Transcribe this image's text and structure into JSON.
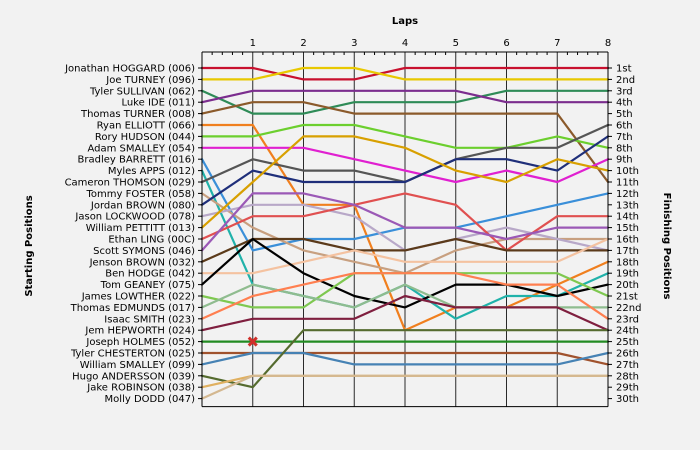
{
  "chart_data": {
    "type": "line",
    "title": "",
    "xlabel": "Laps",
    "ylabel_left": "Starting Positions",
    "ylabel_right": "Finishing Positions",
    "x": [
      0,
      1,
      2,
      3,
      4,
      5,
      6,
      7,
      8
    ],
    "x_tick_labels": [
      "1",
      "2",
      "3",
      "4",
      "5",
      "6",
      "7",
      "8"
    ],
    "ylim": [
      1,
      30
    ],
    "y_inverted": true,
    "grid": "vertical",
    "starting_labels": [
      "Jonathan HOGGARD (006)",
      "Joe TURNEY (096)",
      "Tyler SULLIVAN (062)",
      "Luke IDE (011)",
      "Thomas TURNER (008)",
      "Ryan ELLIOTT (066)",
      "Rory HUDSON (044)",
      "Adam SMALLEY (054)",
      "Bradley BARRETT (016)",
      "Myles APPS (012)",
      "Cameron THOMSON (029)",
      "Tommy FOSTER (058)",
      "Jordan BROWN (080)",
      "Jason LOCKWOOD (078)",
      "William PETTITT (013)",
      "Ethan LING (00C)",
      "Scott SYMONS (046)",
      "Jenson BROWN (032)",
      "Ben HODGE (042)",
      "Tom GEANEY (075)",
      "James LOWTHER (022)",
      "Thomas EDMUNDS (017)",
      "Isaac SMITH (023)",
      "Jem HEPWORTH (024)",
      "Joseph HOLMES (052)",
      "Tyler CHESTERTON (025)",
      "William SMALLEY (099)",
      "Hugo ANDERSSON (039)",
      "Jake ROBINSON (038)",
      "Molly DODD (047)"
    ],
    "finishing_labels": [
      "1st",
      "2nd",
      "3rd",
      "4th",
      "5th",
      "6th",
      "7th",
      "8th",
      "9th",
      "10th",
      "11th",
      "12th",
      "13th",
      "14th",
      "15th",
      "16th",
      "17th",
      "18th",
      "19th",
      "20th",
      "21st",
      "22nd",
      "23rd",
      "24th",
      "25th",
      "26th",
      "27th",
      "28th",
      "29th",
      "30th"
    ],
    "series": [
      {
        "name": "Jonathan HOGGARD (006)",
        "color": "#c8102e",
        "values": [
          1,
          1,
          2,
          2,
          1,
          1,
          1,
          1,
          1
        ]
      },
      {
        "name": "Joe TURNEY (096)",
        "color": "#e8c800",
        "values": [
          2,
          2,
          1,
          1,
          2,
          2,
          2,
          2,
          2
        ]
      },
      {
        "name": "Tyler SULLIVAN (062)",
        "color": "#2e8b57",
        "values": [
          3,
          5,
          5,
          4,
          4,
          4,
          3,
          3,
          3
        ]
      },
      {
        "name": "Luke IDE (011)",
        "color": "#7b2d8e",
        "values": [
          4,
          3,
          3,
          3,
          3,
          3,
          4,
          4,
          4
        ]
      },
      {
        "name": "Thomas TURNER (008)",
        "color": "#8b5a2b",
        "values": [
          5,
          4,
          4,
          5,
          5,
          5,
          5,
          5,
          11
        ]
      },
      {
        "name": "Ryan ELLIOTT (066)",
        "color": "#f07f1e",
        "values": [
          6,
          6,
          13,
          13,
          24,
          22,
          22,
          20,
          18
        ]
      },
      {
        "name": "Rory HUDSON (044)",
        "color": "#6ccf2e",
        "values": [
          7,
          7,
          6,
          6,
          7,
          8,
          8,
          7,
          8
        ]
      },
      {
        "name": "Adam SMALLEY (054)",
        "color": "#e020d0",
        "values": [
          8,
          8,
          8,
          9,
          10,
          11,
          10,
          11,
          9
        ]
      },
      {
        "name": "Bradley BARRETT (016)",
        "color": "#3a8fd9",
        "values": [
          9,
          17,
          16,
          16,
          15,
          15,
          14,
          13,
          12
        ]
      },
      {
        "name": "Myles APPS (012)",
        "color": "#20b2aa",
        "values": [
          10,
          20,
          21,
          22,
          20,
          23,
          21,
          21,
          19
        ]
      },
      {
        "name": "Cameron THOMSON (029)",
        "color": "#555555",
        "values": [
          11,
          9,
          10,
          10,
          11,
          9,
          8,
          8,
          6
        ]
      },
      {
        "name": "Tommy FOSTER (058)",
        "color": "#c8a080",
        "values": [
          12,
          15,
          17,
          18,
          19,
          17,
          16,
          16,
          16
        ]
      },
      {
        "name": "Jordan BROWN (080)",
        "color": "#1f2f7a",
        "values": [
          13,
          10,
          11,
          11,
          11,
          9,
          9,
          10,
          7
        ]
      },
      {
        "name": "Jason LOCKWOOD (078)",
        "color": "#b8a8c8",
        "values": [
          14,
          13,
          13,
          14,
          17,
          16,
          15,
          16,
          17
        ]
      },
      {
        "name": "William PETTITT (013)",
        "color": "#d8a000",
        "values": [
          15,
          11,
          7,
          7,
          8,
          10,
          11,
          9,
          10
        ]
      },
      {
        "name": "Ethan LING (00C)",
        "color": "#e05050",
        "values": [
          16,
          14,
          14,
          13,
          12,
          13,
          17,
          14,
          14
        ]
      },
      {
        "name": "Scott SYMONS (046)",
        "color": "#9b59b6",
        "values": [
          17,
          12,
          12,
          13,
          15,
          15,
          16,
          15,
          15
        ]
      },
      {
        "name": "Jenson BROWN (032)",
        "color": "#5b3a1a",
        "values": [
          18,
          16,
          16,
          17,
          17,
          16,
          17,
          17,
          17
        ]
      },
      {
        "name": "Ben HODGE (042)",
        "color": "#f4c2a0",
        "values": [
          19,
          19,
          18,
          17,
          18,
          18,
          18,
          18,
          16
        ]
      },
      {
        "name": "Tom GEANEY (075)",
        "color": "#000000",
        "values": [
          20,
          16,
          19,
          21,
          22,
          20,
          20,
          21,
          20
        ]
      },
      {
        "name": "James LOWTHER (022)",
        "color": "#7ec850",
        "values": [
          21,
          22,
          22,
          19,
          19,
          19,
          19,
          19,
          21
        ]
      },
      {
        "name": "Thomas EDMUNDS (017)",
        "color": "#8fbc8f",
        "values": [
          22,
          20,
          21,
          22,
          20,
          22,
          22,
          22,
          22
        ]
      },
      {
        "name": "Isaac SMITH (023)",
        "color": "#ff7f50",
        "values": [
          23,
          21,
          20,
          19,
          19,
          19,
          20,
          20,
          23
        ]
      },
      {
        "name": "Jem HEPWORTH (024)",
        "color": "#7f1f3f",
        "values": [
          24,
          23,
          23,
          23,
          21,
          22,
          22,
          22,
          24
        ]
      },
      {
        "name": "Joseph HOLMES (052)",
        "color": "#228b22",
        "values": [
          25,
          25,
          25,
          25,
          25,
          25,
          25,
          25,
          25
        ]
      },
      {
        "name": "Tyler CHESTERTON (025)",
        "color": "#a0522d",
        "values": [
          26,
          26,
          26,
          26,
          26,
          26,
          26,
          26,
          27
        ]
      },
      {
        "name": "William SMALLEY (099)",
        "color": "#4682b4",
        "values": [
          27,
          26,
          26,
          27,
          27,
          27,
          27,
          27,
          26
        ]
      },
      {
        "name": "Hugo ANDERSSON (039)",
        "color": "#556b2f",
        "values": [
          28,
          29,
          24,
          24,
          24,
          24,
          24,
          24,
          24
        ]
      },
      {
        "name": "Jake ROBINSON (038)",
        "color": "#e0b060",
        "values": [
          29,
          28,
          28,
          28,
          28,
          28,
          28,
          28,
          28
        ]
      },
      {
        "name": "Molly DODD (047)",
        "color": "#d4b890",
        "values": [
          30,
          28,
          28,
          28,
          28,
          28,
          28,
          28,
          28
        ]
      }
    ],
    "retirement_marker": {
      "series": "Joseph HOLMES (052)",
      "lap": 1,
      "position": 25,
      "color": "#d0302a"
    }
  }
}
